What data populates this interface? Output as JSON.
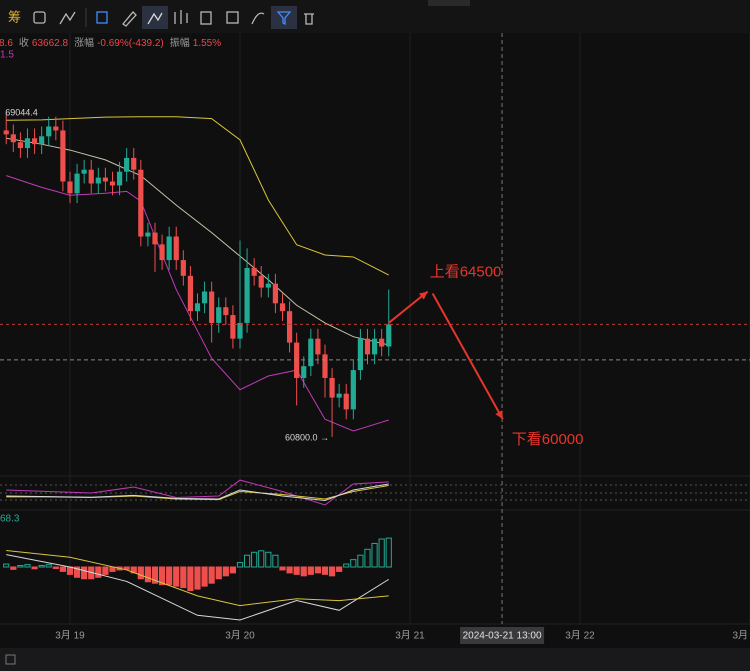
{
  "toolbar": {
    "label": "筹"
  },
  "chart_data": [
    {
      "type": "candlestick",
      "info": {
        "prefix": "8.6",
        "close_label": "收",
        "change_label": "涨幅",
        "change": "-0.69%(-439.2)",
        "amplitude_label": "振幅",
        "amplitude": "1.55%",
        "indicator": "1.5"
      },
      "x": [
        -9,
        -8,
        -7,
        -6,
        -5,
        -4,
        -3,
        -2,
        -1,
        0,
        1,
        2,
        3,
        4,
        5,
        6,
        7,
        8,
        9,
        10,
        11,
        12,
        13,
        14,
        15,
        16,
        17,
        18,
        19,
        20,
        21,
        22,
        23,
        24,
        25,
        26,
        27,
        28,
        29,
        30,
        31,
        32,
        33,
        34,
        35,
        36,
        37,
        38,
        39,
        40,
        41,
        42,
        43,
        44,
        45
      ],
      "open": [
        68600,
        68500,
        68300,
        68150,
        68400,
        68250,
        68450,
        68700,
        68600,
        67300,
        67000,
        67500,
        67600,
        67250,
        67400,
        67300,
        67200,
        67550,
        67900,
        67600,
        65900,
        66000,
        65700,
        65300,
        65900,
        65300,
        64900,
        64000,
        64200,
        64500,
        63700,
        64100,
        63900,
        63300,
        63700,
        65100,
        64900,
        64600,
        64700,
        64200,
        64000,
        63200,
        62300,
        62600,
        63300,
        62900,
        62300,
        61800,
        61900,
        61500,
        62500,
        63300,
        62900,
        63300,
        63100
      ],
      "high": [
        69044.4,
        68750,
        68550,
        68650,
        68650,
        68700,
        68950,
        68950,
        68850,
        67550,
        67750,
        67850,
        67850,
        67650,
        67650,
        67550,
        67800,
        68150,
        68150,
        67850,
        66250,
        66250,
        65950,
        66150,
        66150,
        65550,
        65150,
        64450,
        64750,
        64750,
        64350,
        64350,
        64150,
        65800,
        65600,
        65350,
        65150,
        64950,
        64950,
        64450,
        64250,
        63450,
        62850,
        63550,
        63550,
        63150,
        62550,
        62150,
        62150,
        62750,
        63550,
        63550,
        63550,
        63550,
        64550
      ],
      "low": [
        68250,
        68050,
        67900,
        67900,
        68000,
        68000,
        68200,
        68350,
        67050,
        66750,
        66750,
        67250,
        67000,
        67000,
        67050,
        66950,
        66950,
        67300,
        67350,
        65650,
        65650,
        65000,
        65050,
        65050,
        65050,
        64650,
        63750,
        63750,
        63950,
        63200,
        63450,
        63650,
        63050,
        63050,
        63450,
        64650,
        64350,
        64350,
        63950,
        63750,
        62950,
        61600,
        62050,
        62350,
        62650,
        61800,
        60800,
        61550,
        61250,
        61250,
        62250,
        62650,
        62650,
        62850,
        62850
      ],
      "close": [
        68500,
        68300,
        68150,
        68400,
        68250,
        68450,
        68700,
        68600,
        67300,
        67000,
        67500,
        67600,
        67250,
        67400,
        67300,
        67200,
        67550,
        67900,
        67600,
        65900,
        66000,
        65700,
        65300,
        65900,
        65300,
        64900,
        64000,
        64200,
        64500,
        63700,
        64100,
        63900,
        63300,
        63700,
        65100,
        64900,
        64600,
        64700,
        64200,
        64000,
        63200,
        62300,
        62600,
        63300,
        62900,
        62300,
        61800,
        61900,
        61500,
        62500,
        63300,
        62900,
        63300,
        63100,
        63662.8
      ],
      "up_color": "#22ab94",
      "down_color": "#ee4f4c",
      "low_label": "60800.0 →",
      "lines": [
        {
          "color": "#d9c53c",
          "x": [
            -9,
            -4,
            0,
            5,
            10,
            15,
            20,
            24,
            28,
            32,
            36,
            40,
            45
          ],
          "values": [
            68860,
            68870,
            68900,
            68940,
            68950,
            68950,
            68900,
            68360,
            66830,
            65690,
            65430,
            65380,
            64920
          ]
        },
        {
          "color": "#c9c2a8",
          "x": [
            -9,
            -4,
            0,
            5,
            10,
            15,
            20,
            24,
            28,
            32,
            36,
            40,
            45
          ],
          "values": [
            68400,
            68250,
            68100,
            67850,
            67450,
            66700,
            66000,
            65400,
            64800,
            64150,
            63700,
            63350,
            63140
          ]
        },
        {
          "color": "#c23ab8",
          "x": [
            -9,
            -4,
            0,
            5,
            8,
            10,
            15,
            20,
            24,
            28,
            32,
            36,
            40,
            45
          ],
          "values": [
            67450,
            67150,
            66950,
            67000,
            67050,
            66800,
            64550,
            62800,
            62000,
            62350,
            62500,
            61250,
            60950,
            61230
          ]
        }
      ],
      "annotations": [
        {
          "text": "上看64500",
          "color": "#e8352b",
          "arrow": [
            [
              45,
              63700
            ],
            [
              50.5,
              64500
            ]
          ]
        },
        {
          "text": "下看60000",
          "color": "#e8352b",
          "arrow": [
            [
              51.2,
              64450
            ],
            [
              61.1,
              61250
            ]
          ]
        }
      ],
      "crosshair": {
        "x": {
          "value": 61,
          "label": "2024-03-21 13:00"
        },
        "y": 62760
      },
      "xlim": [
        -9.88,
        96
      ],
      "xticks": [
        {
          "value": 0,
          "label": "3月 19"
        },
        {
          "value": 24,
          "label": "3月 20"
        },
        {
          "value": 48,
          "label": "3月 21"
        },
        {
          "value": 72,
          "label": "3月 22"
        },
        {
          "value": 96,
          "label": "3月"
        }
      ],
      "ylim": [
        59830,
        71080
      ]
    },
    {
      "type": "line",
      "ylim": [
        0,
        100
      ],
      "series": [
        {
          "color": "#c23ab8",
          "x": [
            -9,
            -3,
            3,
            9,
            15,
            21,
            24,
            30,
            36,
            40,
            45
          ],
          "values": [
            60,
            55,
            50,
            70,
            35,
            40,
            93,
            55,
            10,
            80,
            87
          ]
        },
        {
          "color": "#d9c53c",
          "x": [
            -9,
            -3,
            3,
            9,
            15,
            21,
            24,
            30,
            36,
            40,
            45
          ],
          "values": [
            37,
            37,
            35,
            40,
            30,
            28,
            55,
            45,
            30,
            55,
            75
          ]
        },
        {
          "color": "#d8d8d8",
          "x": [
            -9,
            -3,
            3,
            9,
            15,
            21,
            24,
            30,
            36,
            40,
            45
          ],
          "values": [
            40,
            38,
            36,
            42,
            32,
            30,
            60,
            40,
            25,
            60,
            80
          ]
        }
      ]
    },
    {
      "type": "macd",
      "label": "68.3",
      "ylim": [
        -180,
        180
      ],
      "up_color": "#22ab94",
      "down_color": "#ee4f4c",
      "histogram": [
        10,
        -8,
        5,
        8,
        -6,
        5,
        8,
        -5,
        -15,
        -25,
        -35,
        -40,
        -40,
        -35,
        -25,
        -15,
        -10,
        -8,
        -20,
        -40,
        -50,
        -55,
        -60,
        -60,
        -65,
        -70,
        -80,
        -75,
        -65,
        -55,
        -40,
        -30,
        -20,
        15,
        40,
        50,
        55,
        50,
        40,
        -10,
        -20,
        -25,
        -30,
        -25,
        -20,
        -25,
        -30,
        -15,
        10,
        25,
        40,
        60,
        80,
        95,
        98
      ],
      "series": [
        {
          "color": "#d8d8d8",
          "x": [
            -9,
            0,
            8,
            18,
            24,
            32,
            38,
            45
          ],
          "values": [
            42,
            0,
            -49,
            -164,
            -180,
            -114,
            -147,
            -42
          ]
        },
        {
          "color": "#d9c53c",
          "x": [
            -9,
            0,
            8,
            18,
            24,
            32,
            38,
            45
          ],
          "values": [
            56,
            33,
            -10,
            -98,
            -131,
            -108,
            -114,
            -98
          ]
        }
      ]
    }
  ]
}
